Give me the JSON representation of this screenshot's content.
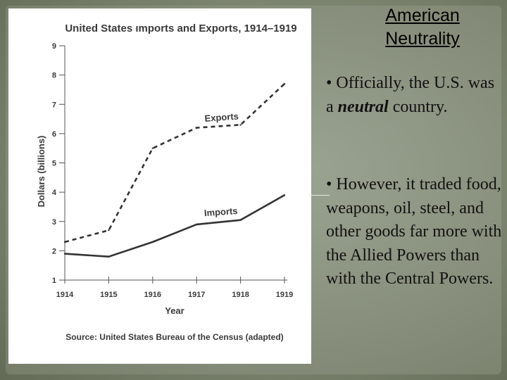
{
  "slide": {
    "title": "American Neutrality",
    "bullet1": {
      "prefix": "• Officially, the U.S. was a ",
      "emphasis": "neutral",
      "suffix": " country."
    },
    "bullet2": "• However, it traded food, weapons, oil, steel, and other goods far more with the Allied Powers than with the Central Powers."
  },
  "chart_data": {
    "type": "line",
    "title": "United States ımports and Exports, 1914–1919",
    "xlabel": "Year",
    "ylabel": "Dollars (billions)",
    "x": [
      "1914",
      "1915",
      "1916",
      "1917",
      "1918",
      "1919"
    ],
    "ylim": [
      1,
      9
    ],
    "yticks": [
      "1",
      "2",
      "3",
      "4",
      "5",
      "6",
      "7",
      "8",
      "9"
    ],
    "series": [
      {
        "name": "Exports",
        "style": "dashed",
        "values": [
          2.3,
          2.7,
          5.5,
          6.2,
          6.3,
          7.7
        ]
      },
      {
        "name": "Imports",
        "style": "solid",
        "values": [
          1.9,
          1.8,
          2.3,
          2.9,
          3.05,
          3.9
        ]
      }
    ],
    "source": "Source: United States Bureau of the Census (adapted)",
    "grid": false
  }
}
